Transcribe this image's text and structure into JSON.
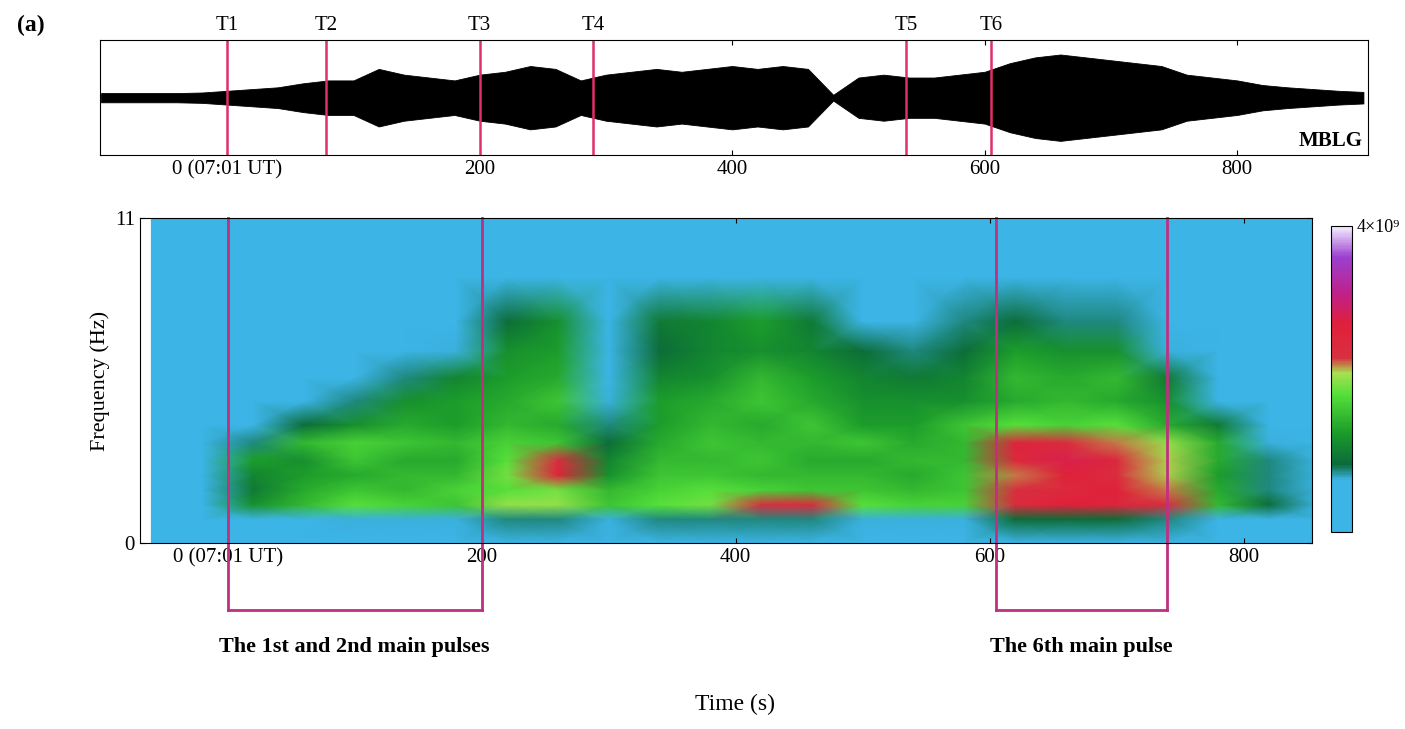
{
  "panel_label": "(a)",
  "chart_data": [
    {
      "type": "area",
      "station": "MBLG",
      "color": "#000000",
      "tick_labels": "x",
      "x": [
        -100,
        -80,
        -60,
        -40,
        -20,
        0,
        20,
        40,
        60,
        80,
        100,
        120,
        140,
        160,
        180,
        200,
        220,
        240,
        260,
        280,
        300,
        320,
        340,
        360,
        380,
        400,
        420,
        440,
        460,
        480,
        500,
        520,
        540,
        560,
        580,
        600,
        620,
        640,
        660,
        680,
        700,
        720,
        740,
        760,
        780,
        800,
        820,
        840,
        860,
        880,
        900
      ],
      "values": [
        0.08,
        0.08,
        0.08,
        0.08,
        0.09,
        0.12,
        0.15,
        0.18,
        0.25,
        0.3,
        0.3,
        0.5,
        0.4,
        0.35,
        0.3,
        0.4,
        0.45,
        0.55,
        0.5,
        0.3,
        0.4,
        0.45,
        0.5,
        0.45,
        0.5,
        0.55,
        0.5,
        0.55,
        0.5,
        0.05,
        0.35,
        0.4,
        0.35,
        0.35,
        0.4,
        0.45,
        0.6,
        0.7,
        0.75,
        0.7,
        0.65,
        0.6,
        0.55,
        0.4,
        0.35,
        0.3,
        0.22,
        0.18,
        0.15,
        0.12,
        0.1
      ],
      "xlim": [
        -101,
        904
      ],
      "ylim": [
        -1,
        1
      ],
      "xticks": [
        {
          "value": 0,
          "label": "0 (07:01 UT)"
        },
        200,
        400,
        600,
        800
      ],
      "markers": [
        {
          "label": "T1",
          "x": 0
        },
        {
          "label": "T2",
          "x": 78
        },
        {
          "label": "T3",
          "x": 200
        },
        {
          "label": "T4",
          "x": 290
        },
        {
          "label": "T5",
          "x": 538
        },
        {
          "label": "T6",
          "x": 605
        }
      ]
    },
    {
      "type": "heatmap",
      "x_label": "Time (s)",
      "y_label": "Frequency (Hz)",
      "x": [
        -60,
        -20,
        20,
        60,
        100,
        140,
        180,
        220,
        260,
        300,
        340,
        380,
        420,
        460,
        500,
        540,
        580,
        620,
        660,
        700,
        740,
        780,
        820,
        860
      ],
      "y": [
        0,
        0.8,
        1.3,
        1.8,
        2.3,
        2.8,
        3.4,
        4,
        4.8,
        5.6,
        6.5,
        7.5,
        9,
        11
      ],
      "cells": [
        [
          200000000.0,
          200000000.0,
          200000000.0,
          200000000.0,
          200000000.0,
          200000000.0,
          200000000.0,
          200000000.0,
          200000000.0,
          200000000.0,
          200000000.0,
          200000000.0,
          200000000.0,
          200000000.0,
          200000000.0,
          200000000.0,
          200000000.0,
          200000000.0,
          200000000.0,
          200000000.0,
          200000000.0,
          200000000.0,
          200000000.0,
          200000000.0
        ],
        [
          200000000.0,
          200000000.0,
          400000000.0,
          600000000.0,
          700000000.0,
          700000000.0,
          700000000.0,
          800000000.0,
          800000000.0,
          700000000.0,
          800000000.0,
          800000000.0,
          800000000.0,
          800000000.0,
          700000000.0,
          700000000.0,
          700000000.0,
          900000000.0,
          900000000.0,
          900000000.0,
          800000000.0,
          600000000.0,
          400000000.0,
          200000000.0
        ],
        [
          200000000.0,
          300000000.0,
          1200000000.0,
          1500000000.0,
          1800000000.0,
          1700000000.0,
          1600000000.0,
          2000000000.0,
          2000000000.0,
          1600000000.0,
          1800000000.0,
          1900000000.0,
          2300000000.0,
          2400000000.0,
          1800000000.0,
          1700000000.0,
          1700000000.0,
          2400000000.0,
          2700000000.0,
          2600000000.0,
          2300000000.0,
          1500000000.0,
          900000000.0,
          300000000.0
        ],
        [
          200000000.0,
          300000000.0,
          1000000000.0,
          1400000000.0,
          1600000000.0,
          1500000000.0,
          1700000000.0,
          1800000000.0,
          1900000000.0,
          1500000000.0,
          1700000000.0,
          1800000000.0,
          1700000000.0,
          1600000000.0,
          1600000000.0,
          1500000000.0,
          1600000000.0,
          2300000000.0,
          2500000000.0,
          2700000000.0,
          2200000000.0,
          1400000000.0,
          800000000.0,
          300000000.0
        ],
        [
          200000000.0,
          300000000.0,
          1100000000.0,
          1300000000.0,
          1400000000.0,
          1500000000.0,
          1500000000.0,
          1900000000.0,
          2600000000.0,
          1200000000.0,
          1600000000.0,
          1600000000.0,
          1500000000.0,
          1500000000.0,
          1500000000.0,
          1400000000.0,
          1600000000.0,
          2200000000.0,
          2700000000.0,
          2400000000.0,
          2100000000.0,
          1300000000.0,
          800000000.0,
          300000000.0
        ],
        [
          200000000.0,
          300000000.0,
          1300000000.0,
          1200000000.0,
          1600000000.0,
          1400000000.0,
          1400000000.0,
          1800000000.0,
          2400000000.0,
          1100000000.0,
          1500000000.0,
          1500000000.0,
          1600000000.0,
          1400000000.0,
          1400000000.0,
          1500000000.0,
          1500000000.0,
          2500000000.0,
          2800000000.0,
          2500000000.0,
          2100000000.0,
          1400000000.0,
          800000000.0,
          300000000.0
        ],
        [
          200000000.0,
          200000000.0,
          800000000.0,
          1500000000.0,
          1700000000.0,
          1600000000.0,
          1500000000.0,
          1700000000.0,
          1600000000.0,
          900000000.0,
          1400000000.0,
          1600000000.0,
          1500000000.0,
          1500000000.0,
          1600000000.0,
          1400000000.0,
          1500000000.0,
          2600000000.0,
          2400000000.0,
          2200000000.0,
          2000000000.0,
          1400000000.0,
          700000000.0,
          200000000.0
        ],
        [
          200000000.0,
          200000000.0,
          500000000.0,
          900000000.0,
          1200000000.0,
          1400000000.0,
          1300000000.0,
          1500000000.0,
          1400000000.0,
          800000000.0,
          1300000000.0,
          1500000000.0,
          1400000000.0,
          1600000000.0,
          1300000000.0,
          1300000000.0,
          1600000000.0,
          1800000000.0,
          1700000000.0,
          1800000000.0,
          1400000000.0,
          1000000000.0,
          500000000.0,
          200000000.0
        ],
        [
          200000000.0,
          200000000.0,
          300000000.0,
          500000000.0,
          800000000.0,
          1200000000.0,
          1300000000.0,
          1400000000.0,
          1600000000.0,
          700000000.0,
          1300000000.0,
          1400000000.0,
          1600000000.0,
          1400000000.0,
          1200000000.0,
          1200000000.0,
          1200000000.0,
          1400000000.0,
          1500000000.0,
          1400000000.0,
          1200000000.0,
          600000000.0,
          300000000.0,
          200000000.0
        ],
        [
          200000000.0,
          200000000.0,
          200000000.0,
          300000000.0,
          500000000.0,
          800000000.0,
          1100000000.0,
          1300000000.0,
          1400000000.0,
          600000000.0,
          1100000000.0,
          1200000000.0,
          1500000000.0,
          1300000000.0,
          1100000000.0,
          1000000000.0,
          1100000000.0,
          1500000000.0,
          1400000000.0,
          1500000000.0,
          1000000000.0,
          400000000.0,
          200000000.0,
          200000000.0
        ],
        [
          200000000.0,
          200000000.0,
          200000000.0,
          200000000.0,
          300000000.0,
          500000000.0,
          700000000.0,
          1200000000.0,
          1300000000.0,
          500000000.0,
          900000000.0,
          1100000000.0,
          1200000000.0,
          1100000000.0,
          900000000.0,
          800000000.0,
          900000000.0,
          1300000000.0,
          1200000000.0,
          1200000000.0,
          700000000.0,
          300000000.0,
          200000000.0,
          200000000.0
        ],
        [
          200000000.0,
          200000000.0,
          200000000.0,
          200000000.0,
          200000000.0,
          300000000.0,
          500000000.0,
          900000000.0,
          1200000000.0,
          500000000.0,
          1000000000.0,
          1100000000.0,
          1300000000.0,
          1000000000.0,
          600000000.0,
          600000000.0,
          800000000.0,
          900000000.0,
          800000000.0,
          800000000.0,
          500000000.0,
          200000000.0,
          200000000.0,
          200000000.0
        ],
        [
          200000000.0,
          200000000.0,
          200000000.0,
          200000000.0,
          200000000.0,
          200000000.0,
          300000000.0,
          500000000.0,
          600000000.0,
          300000000.0,
          400000000.0,
          400000000.0,
          400000000.0,
          400000000.0,
          300000000.0,
          300000000.0,
          500000000.0,
          600000000.0,
          500000000.0,
          500000000.0,
          300000000.0,
          200000000.0,
          200000000.0,
          200000000.0
        ],
        [
          200000000.0,
          200000000.0,
          200000000.0,
          200000000.0,
          200000000.0,
          200000000.0,
          200000000.0,
          200000000.0,
          200000000.0,
          200000000.0,
          200000000.0,
          200000000.0,
          200000000.0,
          200000000.0,
          200000000.0,
          200000000.0,
          200000000.0,
          200000000.0,
          200000000.0,
          200000000.0,
          200000000.0,
          200000000.0,
          200000000.0,
          200000000.0
        ]
      ],
      "crange": [
        0,
        4000000000.0
      ],
      "cticks": [
        {
          "value": 4000000000.0,
          "label": "4×10⁹"
        }
      ],
      "xlim": [
        -69,
        854
      ],
      "ylim": [
        0,
        11
      ],
      "xticks": [
        {
          "value": 0,
          "label": "0 (07:01 UT)"
        },
        200,
        400,
        600,
        800
      ],
      "yticks": [
        0,
        11
      ],
      "brackets": [
        {
          "label": "The 1st and 2nd main pulses",
          "x": [
            0,
            200
          ]
        },
        {
          "label": "The 6th main pulse",
          "x": [
            605,
            740
          ]
        }
      ]
    }
  ]
}
